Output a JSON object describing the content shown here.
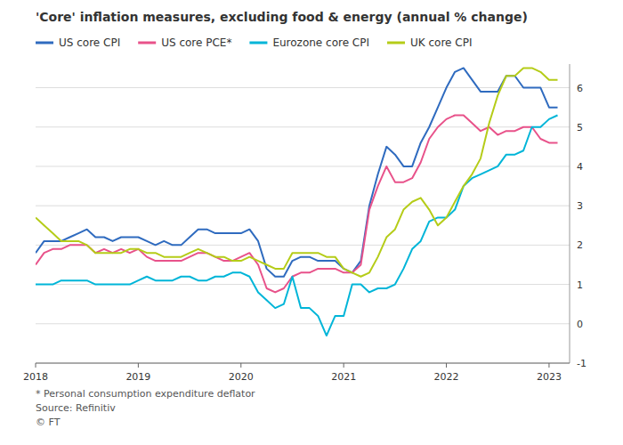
{
  "chart_data": {
    "type": "line",
    "title": "'Core' inflation measures, excluding food & energy (annual % change)",
    "annotations": [
      "* Personal consumption expenditure deflator",
      "Source: Refinitiv",
      "© FT"
    ],
    "x": [
      2018.0,
      2018.083,
      2018.167,
      2018.25,
      2018.333,
      2018.417,
      2018.5,
      2018.583,
      2018.667,
      2018.75,
      2018.833,
      2018.917,
      2019.0,
      2019.083,
      2019.167,
      2019.25,
      2019.333,
      2019.417,
      2019.5,
      2019.583,
      2019.667,
      2019.75,
      2019.833,
      2019.917,
      2020.0,
      2020.083,
      2020.167,
      2020.25,
      2020.333,
      2020.417,
      2020.5,
      2020.583,
      2020.667,
      2020.75,
      2020.833,
      2020.917,
      2021.0,
      2021.083,
      2021.167,
      2021.25,
      2021.333,
      2021.417,
      2021.5,
      2021.583,
      2021.667,
      2021.75,
      2021.833,
      2021.917,
      2022.0,
      2022.083,
      2022.167,
      2022.25,
      2022.333,
      2022.417,
      2022.5,
      2022.583,
      2022.667,
      2022.75,
      2022.833,
      2022.917,
      2023.0,
      2023.083
    ],
    "series": [
      {
        "name": "US core CPI",
        "color": "#2f6bbf",
        "values": [
          1.8,
          2.1,
          2.1,
          2.1,
          2.2,
          2.3,
          2.4,
          2.2,
          2.2,
          2.1,
          2.2,
          2.2,
          2.2,
          2.1,
          2.0,
          2.1,
          2.0,
          2.0,
          2.2,
          2.4,
          2.4,
          2.3,
          2.3,
          2.3,
          2.3,
          2.4,
          2.1,
          1.4,
          1.2,
          1.2,
          1.6,
          1.7,
          1.7,
          1.6,
          1.6,
          1.6,
          1.4,
          1.3,
          1.6,
          3.0,
          3.8,
          4.5,
          4.3,
          4.0,
          4.0,
          4.6,
          5.0,
          5.5,
          6.0,
          6.4,
          6.5,
          6.2,
          5.9,
          5.9,
          5.9,
          6.3,
          6.3,
          6.0,
          6.0,
          6.0,
          5.5,
          5.5
        ]
      },
      {
        "name": "US core PCE*",
        "color": "#e8528a",
        "values": [
          1.5,
          1.8,
          1.9,
          1.9,
          2.0,
          2.0,
          2.0,
          1.8,
          1.9,
          1.8,
          1.9,
          1.8,
          1.9,
          1.7,
          1.6,
          1.6,
          1.6,
          1.6,
          1.7,
          1.8,
          1.8,
          1.7,
          1.6,
          1.6,
          1.7,
          1.8,
          1.5,
          0.9,
          0.8,
          0.9,
          1.2,
          1.3,
          1.3,
          1.4,
          1.4,
          1.4,
          1.3,
          1.3,
          1.5,
          2.9,
          3.5,
          4.0,
          3.6,
          3.6,
          3.7,
          4.1,
          4.7,
          5.0,
          5.2,
          5.3,
          5.3,
          5.1,
          4.9,
          5.0,
          4.8,
          4.9,
          4.9,
          5.0,
          5.0,
          4.7,
          4.6,
          4.6
        ]
      },
      {
        "name": "Eurozone core CPI",
        "color": "#00b5d8",
        "values": [
          1.0,
          1.0,
          1.0,
          1.1,
          1.1,
          1.1,
          1.1,
          1.0,
          1.0,
          1.0,
          1.0,
          1.0,
          1.1,
          1.2,
          1.1,
          1.1,
          1.1,
          1.2,
          1.2,
          1.1,
          1.1,
          1.2,
          1.2,
          1.3,
          1.3,
          1.2,
          0.8,
          0.6,
          0.4,
          0.5,
          1.2,
          0.4,
          0.4,
          0.2,
          -0.3,
          0.2,
          0.2,
          1.0,
          1.0,
          0.8,
          0.9,
          0.9,
          1.0,
          1.4,
          1.9,
          2.1,
          2.6,
          2.7,
          2.7,
          2.9,
          3.5,
          3.7,
          3.8,
          3.9,
          4.0,
          4.3,
          4.3,
          4.4,
          5.0,
          5.0,
          5.2,
          5.3
        ]
      },
      {
        "name": "UK core CPI",
        "color": "#b5cc18",
        "values": [
          2.7,
          2.5,
          2.3,
          2.1,
          2.1,
          2.1,
          2.0,
          1.8,
          1.8,
          1.8,
          1.8,
          1.9,
          1.9,
          1.8,
          1.8,
          1.7,
          1.7,
          1.7,
          1.8,
          1.9,
          1.8,
          1.7,
          1.7,
          1.6,
          1.6,
          1.7,
          1.6,
          1.5,
          1.4,
          1.4,
          1.8,
          1.8,
          1.8,
          1.8,
          1.7,
          1.7,
          1.4,
          1.3,
          1.2,
          1.3,
          1.7,
          2.2,
          2.4,
          2.9,
          3.1,
          3.2,
          2.9,
          2.5,
          2.7,
          3.1,
          3.5,
          3.8,
          4.2,
          5.1,
          5.8,
          6.3,
          6.3,
          6.5,
          6.5,
          6.4,
          6.2,
          6.2
        ]
      }
    ],
    "xlim": [
      2018.0,
      2023.2
    ],
    "xticks": [
      2018,
      2019,
      2020,
      2021,
      2022,
      2023
    ],
    "ylim": [
      -1,
      6.6
    ],
    "yticks": [
      -1,
      0,
      1,
      2,
      3,
      4,
      5,
      6
    ],
    "grid": true,
    "legend": "top"
  }
}
